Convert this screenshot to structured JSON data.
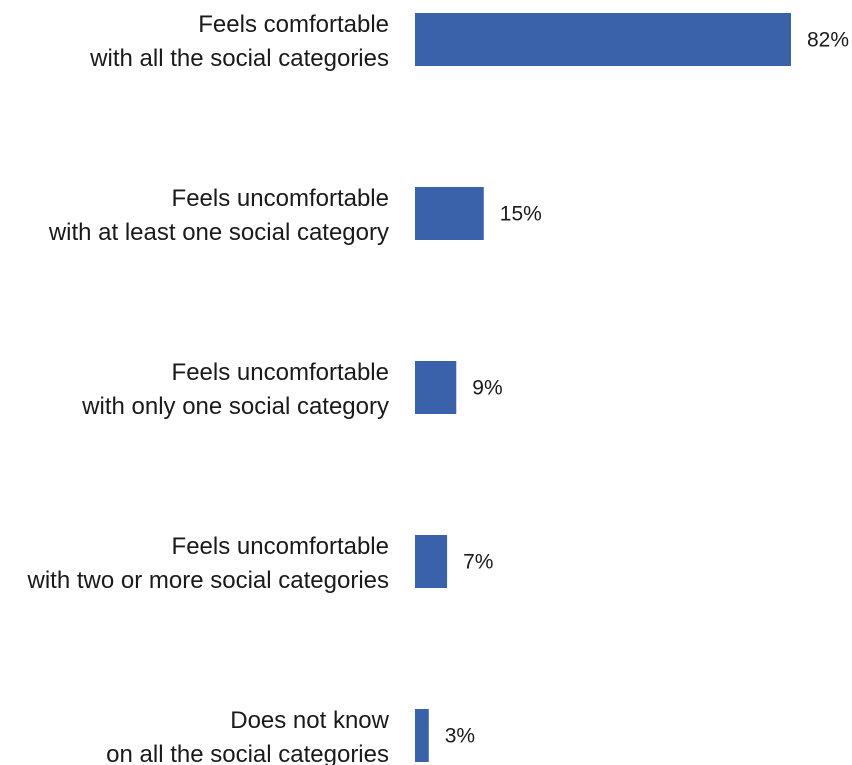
{
  "chart_data": {
    "type": "bar",
    "orientation": "horizontal",
    "title": "",
    "xlabel": "",
    "ylabel": "",
    "categories": [
      [
        "Feels comfortable",
        "with all the social categories"
      ],
      [
        "Feels uncomfortable",
        "with at least one social category"
      ],
      [
        "Feels uncomfortable",
        "with only one social category"
      ],
      [
        "Feels uncomfortable",
        "with two or more social categories"
      ],
      [
        "Does not know",
        "on all the social categories"
      ]
    ],
    "values": [
      82,
      15,
      9,
      7,
      3
    ],
    "value_labels": [
      "82%",
      "15%",
      "9%",
      "7%",
      "3%"
    ],
    "unit": "%",
    "xlim": [
      0,
      100
    ],
    "grid": false,
    "legend": "none",
    "bar_color": "#3a62ab"
  }
}
